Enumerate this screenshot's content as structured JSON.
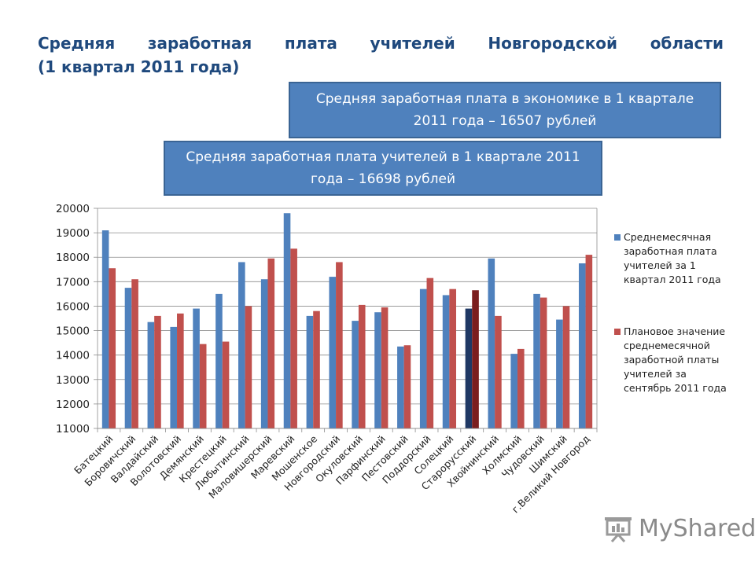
{
  "title": {
    "line1_words": [
      "Средняя",
      "заработная",
      "плата",
      "учителей",
      "Новгородской",
      "области"
    ],
    "line2": "(1 квартал 2011 года)"
  },
  "callouts": {
    "economy": "Средняя заработная плата в экономике в 1 квартале 2011 года – 16507 рублей",
    "teachers": "Средняя заработная плата учителей в 1 квартале 2011 года – 16698 рублей"
  },
  "logo": {
    "text": "MyShared",
    "icon": "presentation-board-icon"
  },
  "colors": {
    "series1": "#4f81bd",
    "series2": "#c0504d",
    "highlight1": "#1f3864",
    "highlight2": "#7b1e1e",
    "title": "#1f497d"
  },
  "chart_data": {
    "type": "bar",
    "categories": [
      "Батецкий",
      "Боровичский",
      "Валдайский",
      "Волотовский",
      "Демянский",
      "Крестецкий",
      "Любытинский",
      "Маловишерский",
      "Маревский",
      "Мошенское",
      "Новгородский",
      "Окуловский",
      "Парфинский",
      "Пестовский",
      "Поддорский",
      "Солецкий",
      "Старорусский",
      "Хвойнинский",
      "Холмский",
      "Чудовский",
      "Шимский",
      "г.Великий Новгород"
    ],
    "series": [
      {
        "name": "Среднемесячная заработная плата учителей за 1 квартал 2011 года",
        "values": [
          19100,
          16750,
          15350,
          15150,
          15900,
          16500,
          17800,
          17100,
          19800,
          15600,
          17200,
          15400,
          15750,
          14350,
          16700,
          16450,
          15900,
          17950,
          14050,
          16500,
          15450,
          17750
        ]
      },
      {
        "name": "Плановое значение среднемесячной заработной платы учителей за сентябрь 2011 года",
        "values": [
          17550,
          17100,
          15600,
          15700,
          14450,
          14550,
          16000,
          17950,
          18350,
          15800,
          17800,
          16050,
          15950,
          14400,
          17150,
          16700,
          16650,
          15600,
          14250,
          16350,
          16000,
          18100
        ]
      }
    ],
    "highlight_category": "Старорусский",
    "ylim": [
      11000,
      20000
    ],
    "yticks": [
      "11000",
      "12000",
      "13000",
      "14000",
      "15000",
      "16000",
      "17000",
      "18000",
      "19000",
      "20000"
    ],
    "grid": true,
    "legend_position": "right"
  }
}
